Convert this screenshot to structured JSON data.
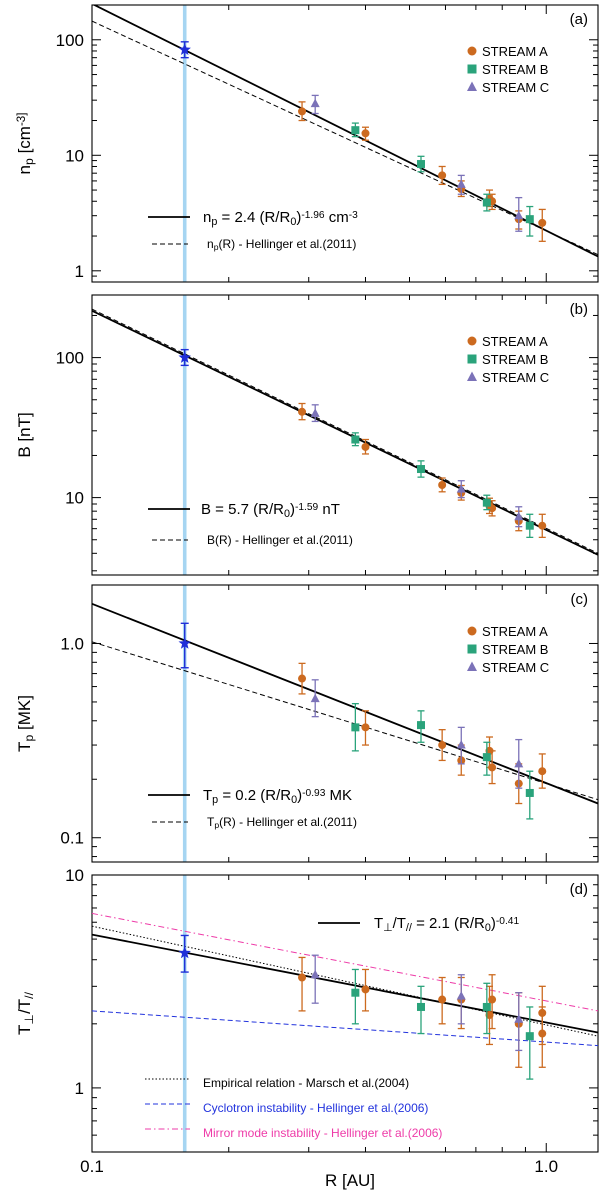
{
  "colors": {
    "stream_a": "#cc6a1f",
    "stream_b": "#2aa37b",
    "stream_c": "#7b72b8",
    "star": "#1f2fd8",
    "highlight": "#a6d5f2",
    "fit": "#000000",
    "cyclotron": "#2233dd",
    "mirror": "#ee3ba8"
  },
  "x_axis": {
    "label": "R [AU]",
    "scale": "log",
    "range": [
      0.1,
      1.3
    ],
    "tick_values": [
      0.1,
      1.0
    ],
    "tick_labels": [
      "0.1",
      "1.0"
    ]
  },
  "highlight_r": 0.16,
  "legend_streams": [
    "STREAM A",
    "STREAM B",
    "STREAM C"
  ],
  "chart_data": [
    {
      "panel": "(a)",
      "type": "scatter",
      "yscale": "log",
      "ylim": [
        0.8,
        200
      ],
      "ylabel": "n_p [cm^-3]",
      "ytick_values": [
        1,
        10,
        100
      ],
      "ytick_labels": [
        "1",
        "10",
        "100"
      ],
      "legend": [
        "STREAM A",
        "STREAM B",
        "STREAM C"
      ],
      "legend_streams_visible": true,
      "star": {
        "x": 0.16,
        "y": 82,
        "lo": 70,
        "hi": 96
      },
      "fits": [
        {
          "label": "n_p = 2.4 (R/R_0)^-1.96 cm^-3",
          "style": "solid",
          "color": "#000000",
          "x1": 0.1,
          "y1": 205,
          "x2": 1.3,
          "y2": 1.33
        },
        {
          "label": "n_p(R) - Hellinger et al.(2011)",
          "style": "dashed",
          "color": "#000000",
          "x1": 0.1,
          "y1": 145,
          "x2": 1.3,
          "y2": 1.38
        }
      ],
      "series": [
        {
          "name": "STREAM A",
          "points": [
            {
              "x": 0.29,
              "y": 24,
              "lo": 20,
              "hi": 29
            },
            {
              "x": 0.4,
              "y": 15.5,
              "lo": 13.5,
              "hi": 17.5
            },
            {
              "x": 0.59,
              "y": 6.7,
              "lo": 5.6,
              "hi": 8.0
            },
            {
              "x": 0.65,
              "y": 5.1,
              "lo": 4.4,
              "hi": 6.0
            },
            {
              "x": 0.75,
              "y": 4.2,
              "lo": 3.6,
              "hi": 5.0
            },
            {
              "x": 0.76,
              "y": 4.0,
              "lo": 3.4,
              "hi": 4.6
            },
            {
              "x": 0.87,
              "y": 2.8,
              "lo": 2.3,
              "hi": 3.3
            },
            {
              "x": 0.98,
              "y": 2.6,
              "lo": 1.8,
              "hi": 3.4
            }
          ]
        },
        {
          "name": "STREAM B",
          "points": [
            {
              "x": 0.38,
              "y": 16.5,
              "lo": 14.5,
              "hi": 19.0
            },
            {
              "x": 0.53,
              "y": 8.4,
              "lo": 7.2,
              "hi": 9.8
            },
            {
              "x": 0.74,
              "y": 3.9,
              "lo": 3.3,
              "hi": 4.6
            },
            {
              "x": 0.92,
              "y": 2.8,
              "lo": 2.0,
              "hi": 3.6
            }
          ]
        },
        {
          "name": "STREAM C",
          "points": [
            {
              "x": 0.31,
              "y": 28,
              "lo": 23,
              "hi": 33
            },
            {
              "x": 0.65,
              "y": 5.6,
              "lo": 4.6,
              "hi": 6.7
            },
            {
              "x": 0.87,
              "y": 3.0,
              "lo": 2.2,
              "hi": 4.3
            }
          ]
        }
      ]
    },
    {
      "panel": "(b)",
      "type": "scatter",
      "yscale": "log",
      "ylim": [
        2.8,
        280
      ],
      "ylabel": "B [nT]",
      "ytick_values": [
        10,
        100
      ],
      "ytick_labels": [
        "10",
        "100"
      ],
      "legend": [
        "STREAM A",
        "STREAM B",
        "STREAM C"
      ],
      "legend_streams_visible": true,
      "star": {
        "x": 0.16,
        "y": 100,
        "lo": 88,
        "hi": 114
      },
      "fits": [
        {
          "label": "B = 5.7 (R/R_0)^-1.59 nT",
          "style": "solid",
          "color": "#000000",
          "x1": 0.1,
          "y1": 216,
          "x2": 1.3,
          "y2": 3.9
        },
        {
          "label": "B(R) - Hellinger et al.(2011)",
          "style": "dashed",
          "color": "#000000",
          "x1": 0.1,
          "y1": 222,
          "x2": 1.3,
          "y2": 4.0
        }
      ],
      "series": [
        {
          "name": "STREAM A",
          "points": [
            {
              "x": 0.29,
              "y": 41,
              "lo": 36,
              "hi": 47
            },
            {
              "x": 0.4,
              "y": 23,
              "lo": 20.5,
              "hi": 26
            },
            {
              "x": 0.59,
              "y": 12.3,
              "lo": 11.0,
              "hi": 13.8
            },
            {
              "x": 0.65,
              "y": 10.8,
              "lo": 9.6,
              "hi": 12.2
            },
            {
              "x": 0.75,
              "y": 8.7,
              "lo": 7.7,
              "hi": 9.9
            },
            {
              "x": 0.76,
              "y": 8.4,
              "lo": 7.4,
              "hi": 9.5
            },
            {
              "x": 0.87,
              "y": 6.8,
              "lo": 5.8,
              "hi": 8.0
            },
            {
              "x": 0.98,
              "y": 6.3,
              "lo": 5.2,
              "hi": 7.6
            }
          ]
        },
        {
          "name": "STREAM B",
          "points": [
            {
              "x": 0.38,
              "y": 26,
              "lo": 23.5,
              "hi": 29
            },
            {
              "x": 0.53,
              "y": 16,
              "lo": 14.0,
              "hi": 18.3
            },
            {
              "x": 0.74,
              "y": 9.2,
              "lo": 8.2,
              "hi": 10.4
            },
            {
              "x": 0.92,
              "y": 6.3,
              "lo": 5.2,
              "hi": 7.6
            }
          ]
        },
        {
          "name": "STREAM C",
          "points": [
            {
              "x": 0.31,
              "y": 40,
              "lo": 35,
              "hi": 46
            },
            {
              "x": 0.65,
              "y": 11.5,
              "lo": 10.0,
              "hi": 13.2
            },
            {
              "x": 0.87,
              "y": 7.3,
              "lo": 6.2,
              "hi": 8.6
            }
          ]
        }
      ]
    },
    {
      "panel": "(c)",
      "type": "scatter",
      "yscale": "log",
      "ylim": [
        0.075,
        2.0
      ],
      "ylabel": "T_p [MK]",
      "ytick_values": [
        0.1,
        1.0
      ],
      "ytick_labels": [
        "0.1",
        "1.0"
      ],
      "legend": [
        "STREAM A",
        "STREAM B",
        "STREAM C"
      ],
      "legend_streams_visible": true,
      "star": {
        "x": 0.16,
        "y": 1.0,
        "lo": 0.75,
        "hi": 1.27
      },
      "fits": [
        {
          "label": "T_p = 0.2 (R/R_0)^-0.93 MK",
          "style": "solid",
          "color": "#000000",
          "x1": 0.1,
          "y1": 1.6,
          "x2": 1.3,
          "y2": 0.15
        },
        {
          "label": "T_p(R) - Hellinger et al.(2011)",
          "style": "dashed",
          "color": "#000000",
          "x1": 0.1,
          "y1": 1.02,
          "x2": 1.3,
          "y2": 0.157
        }
      ],
      "series": [
        {
          "name": "STREAM A",
          "points": [
            {
              "x": 0.29,
              "y": 0.66,
              "lo": 0.55,
              "hi": 0.79
            },
            {
              "x": 0.4,
              "y": 0.37,
              "lo": 0.3,
              "hi": 0.45
            },
            {
              "x": 0.59,
              "y": 0.3,
              "lo": 0.25,
              "hi": 0.36
            },
            {
              "x": 0.65,
              "y": 0.25,
              "lo": 0.21,
              "hi": 0.3
            },
            {
              "x": 0.75,
              "y": 0.28,
              "lo": 0.23,
              "hi": 0.33
            },
            {
              "x": 0.76,
              "y": 0.23,
              "lo": 0.19,
              "hi": 0.28
            },
            {
              "x": 0.87,
              "y": 0.19,
              "lo": 0.15,
              "hi": 0.24
            },
            {
              "x": 0.98,
              "y": 0.22,
              "lo": 0.18,
              "hi": 0.27
            }
          ]
        },
        {
          "name": "STREAM B",
          "points": [
            {
              "x": 0.38,
              "y": 0.37,
              "lo": 0.28,
              "hi": 0.49
            },
            {
              "x": 0.53,
              "y": 0.38,
              "lo": 0.31,
              "hi": 0.45
            },
            {
              "x": 0.74,
              "y": 0.26,
              "lo": 0.21,
              "hi": 0.31
            },
            {
              "x": 0.92,
              "y": 0.17,
              "lo": 0.125,
              "hi": 0.22
            }
          ]
        },
        {
          "name": "STREAM C",
          "points": [
            {
              "x": 0.31,
              "y": 0.52,
              "lo": 0.42,
              "hi": 0.65
            },
            {
              "x": 0.65,
              "y": 0.3,
              "lo": 0.24,
              "hi": 0.37
            },
            {
              "x": 0.87,
              "y": 0.24,
              "lo": 0.18,
              "hi": 0.32
            }
          ]
        }
      ]
    },
    {
      "panel": "(d)",
      "type": "scatter",
      "yscale": "log",
      "ylim": [
        0.5,
        10
      ],
      "ylabel": "T_perp/T_par",
      "ytick_values": [
        1,
        10
      ],
      "ytick_labels": [
        "1",
        "10"
      ],
      "legend_streams_visible": false,
      "star": {
        "x": 0.16,
        "y": 4.3,
        "lo": 3.5,
        "hi": 5.2
      },
      "fits": [
        {
          "label": "T_perp/T_par = 2.1 (R/R_0)^-0.41",
          "style": "solid",
          "color": "#000000",
          "x1": 0.1,
          "y1": 5.25,
          "x2": 1.3,
          "y2": 1.82
        },
        {
          "label": "Empirical relation - Marsch et al.(2004)",
          "style": "dotted",
          "color": "#000000",
          "x1": 0.1,
          "y1": 5.75,
          "x2": 1.3,
          "y2": 1.75
        },
        {
          "label": "Cyclotron instability - Hellinger et al.(2006)",
          "style": "dashed",
          "color": "#2233dd",
          "x1": 0.1,
          "y1": 2.3,
          "x2": 1.3,
          "y2": 1.58
        },
        {
          "label": "Mirror mode instability - Hellinger et al.(2006)",
          "style": "dashdot",
          "color": "#ee3ba8",
          "x1": 0.1,
          "y1": 6.6,
          "x2": 1.3,
          "y2": 2.3
        }
      ],
      "series": [
        {
          "name": "STREAM A",
          "points": [
            {
              "x": 0.29,
              "y": 3.3,
              "lo": 2.3,
              "hi": 4.1
            },
            {
              "x": 0.4,
              "y": 2.9,
              "lo": 2.3,
              "hi": 3.6
            },
            {
              "x": 0.59,
              "y": 2.6,
              "lo": 2.0,
              "hi": 3.3
            },
            {
              "x": 0.65,
              "y": 2.6,
              "lo": 1.9,
              "hi": 3.3
            },
            {
              "x": 0.75,
              "y": 2.2,
              "lo": 1.6,
              "hi": 3.0
            },
            {
              "x": 0.76,
              "y": 2.6,
              "lo": 1.9,
              "hi": 3.4
            },
            {
              "x": 0.87,
              "y": 2.0,
              "lo": 1.25,
              "hi": 2.8
            },
            {
              "x": 0.98,
              "y": 2.25,
              "lo": 1.6,
              "hi": 3.0
            },
            {
              "x": 0.98,
              "y": 1.8,
              "lo": 1.25,
              "hi": 2.4
            }
          ]
        },
        {
          "name": "STREAM B",
          "points": [
            {
              "x": 0.38,
              "y": 2.8,
              "lo": 2.0,
              "hi": 3.6
            },
            {
              "x": 0.53,
              "y": 2.4,
              "lo": 1.8,
              "hi": 3.0
            },
            {
              "x": 0.74,
              "y": 2.4,
              "lo": 1.8,
              "hi": 3.1
            },
            {
              "x": 0.92,
              "y": 1.75,
              "lo": 1.1,
              "hi": 2.4
            }
          ]
        },
        {
          "name": "STREAM C",
          "points": [
            {
              "x": 0.31,
              "y": 3.4,
              "lo": 2.5,
              "hi": 4.2
            },
            {
              "x": 0.65,
              "y": 2.7,
              "lo": 2.0,
              "hi": 3.4
            },
            {
              "x": 0.87,
              "y": 2.1,
              "lo": 1.5,
              "hi": 2.8
            }
          ]
        }
      ]
    }
  ]
}
